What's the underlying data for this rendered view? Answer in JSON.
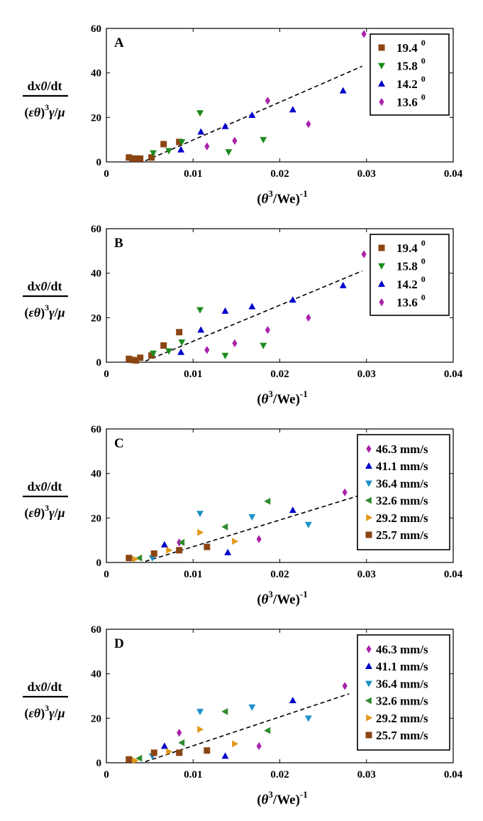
{
  "chart_data": [
    {
      "type": "scatter",
      "panel_label": "A",
      "ylabel_numerator": "dx0/dt",
      "ylabel_denominator": "(εθ)3γ/μ",
      "xlabel": "(θ3/We)-1",
      "xlim": [
        0,
        0.04
      ],
      "ylim": [
        0,
        60
      ],
      "xticks": [
        "0",
        "0.01",
        "0.02",
        "0.03",
        "0.04"
      ],
      "yticks": [
        "0",
        "20",
        "40",
        "60"
      ],
      "grid": false,
      "legend": "top-right",
      "fit_line": {
        "style": "dashed",
        "x": [
          0.0045,
          0.0295
        ],
        "y": [
          0.5,
          43
        ]
      },
      "series": [
        {
          "name": "19.4",
          "superscript": "0",
          "marker": "square",
          "color": "#8B4513",
          "x": [
            0.0026,
            0.003,
            0.0034,
            0.0039,
            0.0052,
            0.0066,
            0.0084
          ],
          "y": [
            2,
            1.5,
            1.5,
            1.5,
            2,
            8,
            9
          ]
        },
        {
          "name": "15.8",
          "superscript": "0",
          "marker": "triangle-down",
          "color": "#1B8C1B",
          "x": [
            0.0054,
            0.0072,
            0.0087,
            0.0108,
            0.0141,
            0.0181
          ],
          "y": [
            4,
            5,
            9,
            22,
            4.5,
            10
          ]
        },
        {
          "name": "14.2",
          "superscript": "0",
          "marker": "triangle-up",
          "color": "#0000CC",
          "x": [
            0.0086,
            0.0109,
            0.0137,
            0.0168,
            0.0215,
            0.0273
          ],
          "y": [
            5.5,
            13.5,
            16,
            21,
            23.5,
            32
          ]
        },
        {
          "name": "13.6",
          "superscript": "0",
          "marker": "diamond",
          "color": "#AA22AA",
          "x": [
            0.0116,
            0.0148,
            0.0186,
            0.0233,
            0.0297
          ],
          "y": [
            7,
            9.5,
            27.5,
            17,
            57.5
          ]
        }
      ]
    },
    {
      "type": "scatter",
      "panel_label": "B",
      "ylabel_numerator": "dx0/dt",
      "ylabel_denominator": "(εθ)3γ/μ",
      "xlabel": "(θ3/We)-1",
      "xlim": [
        0,
        0.04
      ],
      "ylim": [
        0,
        60
      ],
      "xticks": [
        "0",
        "0.01",
        "0.02",
        "0.03",
        "0.04"
      ],
      "yticks": [
        "0",
        "20",
        "40",
        "60"
      ],
      "grid": false,
      "legend": "top-right",
      "fit_line": {
        "style": "dashed",
        "x": [
          0.0045,
          0.0295
        ],
        "y": [
          0.5,
          41
        ]
      },
      "series": [
        {
          "name": "19.4",
          "superscript": "0",
          "marker": "square",
          "color": "#8B4513",
          "x": [
            0.0026,
            0.003,
            0.0034,
            0.0039,
            0.0052,
            0.0066,
            0.0084
          ],
          "y": [
            1.5,
            1,
            0.8,
            2,
            3,
            7.5,
            13.5
          ]
        },
        {
          "name": "15.8",
          "superscript": "0",
          "marker": "triangle-down",
          "color": "#1B8C1B",
          "x": [
            0.0054,
            0.0072,
            0.0087,
            0.0108,
            0.0137,
            0.0181
          ],
          "y": [
            4,
            5,
            9,
            23.5,
            3,
            7.5
          ]
        },
        {
          "name": "14.2",
          "superscript": "0",
          "marker": "triangle-up",
          "color": "#0000CC",
          "x": [
            0.0086,
            0.0109,
            0.0137,
            0.0168,
            0.0215,
            0.0273
          ],
          "y": [
            4.5,
            14.5,
            23,
            25,
            28,
            34.5
          ]
        },
        {
          "name": "13.6",
          "superscript": "0",
          "marker": "diamond",
          "color": "#AA22AA",
          "x": [
            0.0116,
            0.0148,
            0.0186,
            0.0233,
            0.0297
          ],
          "y": [
            5.5,
            8.5,
            14.5,
            20,
            48.5
          ]
        }
      ]
    },
    {
      "type": "scatter",
      "panel_label": "C",
      "ylabel_numerator": "dx0/dt",
      "ylabel_denominator": "(εθ)3γ/μ",
      "xlabel": "(θ3/We)-1",
      "xlim": [
        0,
        0.04
      ],
      "ylim": [
        0,
        60
      ],
      "xticks": [
        "0",
        "0.01",
        "0.02",
        "0.03",
        "0.04"
      ],
      "yticks": [
        "0",
        "20",
        "40",
        "60"
      ],
      "grid": false,
      "legend": "top-right",
      "fit_line": {
        "style": "dashed",
        "x": [
          0.0045,
          0.0295
        ],
        "y": [
          0.5,
          30.5
        ]
      },
      "series": [
        {
          "name": "46.3 mm/s",
          "marker": "diamond",
          "color": "#AA22AA",
          "x": [
            0.0084,
            0.0176,
            0.0275
          ],
          "y": [
            9,
            10.5,
            31.5
          ]
        },
        {
          "name": "41.1 mm/s",
          "marker": "triangle-up",
          "color": "#0000CC",
          "x": [
            0.0067,
            0.014,
            0.0215
          ],
          "y": [
            8,
            4.5,
            23.5
          ]
        },
        {
          "name": "36.4 mm/s",
          "marker": "triangle-down",
          "color": "#1E90C8",
          "x": [
            0.0053,
            0.0108,
            0.0168,
            0.0233
          ],
          "y": [
            2,
            22,
            20.5,
            17
          ]
        },
        {
          "name": "32.6 mm/s",
          "marker": "triangle-left",
          "color": "#2E8B2E",
          "x": [
            0.0038,
            0.0087,
            0.0137,
            0.0186
          ],
          "y": [
            2,
            9,
            16,
            27.5
          ]
        },
        {
          "name": "29.2 mm/s",
          "marker": "triangle-right",
          "color": "#E09A1A",
          "x": [
            0.0033,
            0.0072,
            0.0108,
            0.0148
          ],
          "y": [
            1.5,
            5.5,
            13.5,
            9.5
          ]
        },
        {
          "name": "25.7 mm/s",
          "marker": "square",
          "color": "#8B4513",
          "x": [
            0.0026,
            0.0055,
            0.0084,
            0.0116
          ],
          "y": [
            2,
            4,
            5.5,
            7
          ]
        }
      ]
    },
    {
      "type": "scatter",
      "panel_label": "D",
      "ylabel_numerator": "dx0/dt",
      "ylabel_denominator": "(εθ)3γ/μ",
      "xlabel": "(θ3/We)-1",
      "xlim": [
        0,
        0.04
      ],
      "ylim": [
        0,
        60
      ],
      "xticks": [
        "0",
        "0.01",
        "0.02",
        "0.03",
        "0.04"
      ],
      "yticks": [
        "0",
        "20",
        "40",
        "60"
      ],
      "grid": false,
      "legend": "top-right",
      "fit_line": {
        "style": "dashed",
        "x": [
          0.0045,
          0.028
        ],
        "y": [
          0.5,
          31
        ]
      },
      "series": [
        {
          "name": "46.3 mm/s",
          "marker": "diamond",
          "color": "#AA22AA",
          "x": [
            0.0084,
            0.0176,
            0.0275
          ],
          "y": [
            13.5,
            7.5,
            34.5
          ]
        },
        {
          "name": "41.1 mm/s",
          "marker": "triangle-up",
          "color": "#0000CC",
          "x": [
            0.0067,
            0.0137,
            0.0215
          ],
          "y": [
            7.5,
            3,
            28
          ]
        },
        {
          "name": "36.4 mm/s",
          "marker": "triangle-down",
          "color": "#1E90C8",
          "x": [
            0.0053,
            0.0108,
            0.0168,
            0.0233
          ],
          "y": [
            3,
            23,
            25,
            20
          ]
        },
        {
          "name": "32.6 mm/s",
          "marker": "triangle-left",
          "color": "#2E8B2E",
          "x": [
            0.0038,
            0.0087,
            0.0137,
            0.0186
          ],
          "y": [
            2,
            9,
            23,
            14.5
          ]
        },
        {
          "name": "29.2 mm/s",
          "marker": "triangle-right",
          "color": "#E09A1A",
          "x": [
            0.0033,
            0.0072,
            0.0108,
            0.0148
          ],
          "y": [
            1,
            5,
            15,
            8.5
          ]
        },
        {
          "name": "25.7 mm/s",
          "marker": "square",
          "color": "#8B4513",
          "x": [
            0.0026,
            0.0055,
            0.0084,
            0.0116
          ],
          "y": [
            1.5,
            4.5,
            4.5,
            5.5
          ]
        }
      ]
    }
  ]
}
